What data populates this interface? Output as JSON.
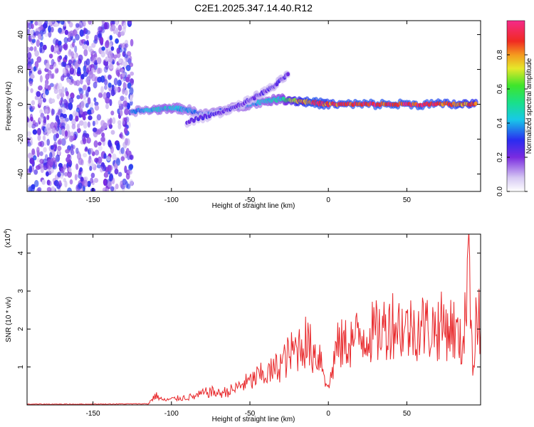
{
  "title": "C2E1.2025.347.14.40.R12",
  "chart_data": [
    {
      "type": "heatmap",
      "xlabel": "Height of straight line (km)",
      "ylabel": "Frequency (Hz)",
      "xlim": [
        -192,
        97
      ],
      "ylim": [
        -50,
        48
      ],
      "xticks": [
        -150,
        -100,
        -50,
        0,
        50
      ],
      "yticks": [
        -40,
        -20,
        0,
        20,
        40
      ],
      "colorbar": {
        "label": "Normalized spectral amplitude",
        "range": [
          0,
          1
        ],
        "ticks": [
          "0.0",
          "0.2",
          "0.4",
          "0.6",
          "0.8"
        ],
        "tick_values": [
          0,
          0.2,
          0.4,
          0.6,
          0.8
        ]
      },
      "features": [
        {
          "name": "noise",
          "x_range": [
            -192,
            -125
          ],
          "y_range": [
            -50,
            48
          ],
          "amplitude": 0.2
        },
        {
          "name": "main-track",
          "x": [
            -125,
            -110,
            -100,
            -90,
            -80,
            -70,
            -60,
            -50,
            -40,
            -30,
            -20,
            -10,
            0,
            20,
            40,
            60,
            80,
            95
          ],
          "y": [
            -4,
            -3,
            -2,
            -3,
            -6,
            -4,
            -2,
            0,
            2,
            3,
            2,
            1,
            0,
            0,
            0,
            0,
            0,
            0
          ],
          "amplitude": [
            0.35,
            0.45,
            0.45,
            0.4,
            0.35,
            0.35,
            0.35,
            0.4,
            0.45,
            0.5,
            0.8,
            0.95,
            0.9,
            0.95,
            0.95,
            0.95,
            0.9,
            0.85
          ]
        },
        {
          "name": "rising-branch",
          "x": [
            -90,
            -70,
            -55,
            -45,
            -35,
            -25
          ],
          "y": [
            -10,
            -5,
            0,
            5,
            10,
            18
          ],
          "amplitude": 0.25
        }
      ]
    },
    {
      "type": "line",
      "xlabel": "Height of straight line (km)",
      "ylabel": "SNR (10 * v/v)",
      "y_multiplier": "(x10",
      "y_multiplier_exp": "4",
      "xlim": [
        -192,
        97
      ],
      "ylim": [
        0,
        4.5
      ],
      "xticks": [
        -150,
        -100,
        -50,
        0,
        50
      ],
      "yticks": [
        1,
        2,
        3,
        4
      ],
      "series_color": "#e8282b",
      "series": [
        {
          "x": [
            -192,
            -150,
            -115,
            -110,
            -105,
            -100,
            -95,
            -90,
            -85,
            -80,
            -75,
            -70,
            -65,
            -60,
            -55,
            -50,
            -45,
            -40,
            -35,
            -30,
            -25,
            -20,
            -15,
            -10,
            -5,
            0,
            5,
            10,
            15,
            20,
            25,
            30,
            35,
            40,
            45,
            50,
            55,
            60,
            65,
            70,
            75,
            80,
            85,
            88,
            90,
            92,
            94,
            97
          ],
          "y": [
            0.02,
            0.02,
            0.03,
            0.25,
            0.12,
            0.15,
            0.18,
            0.2,
            0.22,
            0.3,
            0.35,
            0.3,
            0.35,
            0.4,
            0.55,
            0.6,
            0.75,
            0.8,
            0.9,
            1.1,
            1.3,
            1.5,
            1.7,
            1.4,
            1.3,
            0.4,
            1.5,
            1.6,
            1.7,
            1.8,
            1.9,
            1.9,
            2.0,
            2.2,
            2.1,
            2.0,
            2.05,
            2.1,
            2.0,
            2.05,
            2.1,
            2.0,
            1.5,
            3.0,
            4.3,
            0.8,
            2.5,
            2.0
          ]
        }
      ]
    }
  ]
}
